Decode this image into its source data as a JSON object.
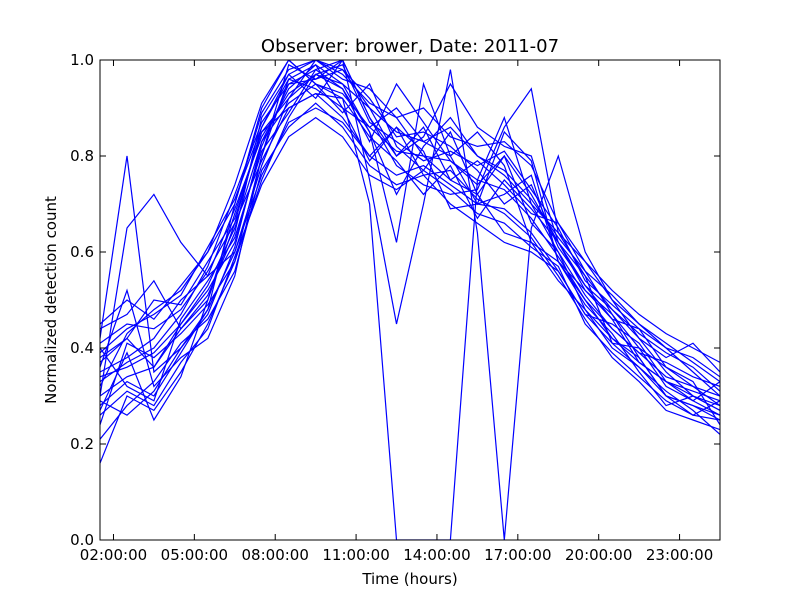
{
  "chart_data": {
    "type": "line",
    "title": "Observer: brower, Date: 2011-07",
    "xlabel": "Time (hours)",
    "ylabel": "Normalized detection count",
    "xlim": [
      1.5,
      24.5
    ],
    "ylim": [
      0.0,
      1.0
    ],
    "x_tick_values": [
      2,
      5,
      8,
      11,
      14,
      17,
      20,
      23
    ],
    "x_tick_labels": [
      "02:00:00",
      "05:00:00",
      "08:00:00",
      "11:00:00",
      "14:00:00",
      "17:00:00",
      "20:00:00",
      "23:00:00"
    ],
    "y_tick_values": [
      0.0,
      0.2,
      0.4,
      0.6,
      0.8,
      1.0
    ],
    "y_tick_labels": [
      "0.0",
      "0.2",
      "0.4",
      "0.6",
      "0.8",
      "1.0"
    ],
    "line_color": "#0000ff",
    "grid": false,
    "x": [
      1.5,
      2.5,
      3.5,
      4.5,
      5.5,
      6.5,
      7.5,
      8.5,
      9.5,
      10.5,
      11.5,
      12.5,
      13.5,
      14.5,
      15.5,
      16.5,
      17.5,
      18.5,
      19.5,
      20.5,
      21.5,
      22.5,
      23.5,
      24.5
    ],
    "series": [
      {
        "values": [
          0.38,
          0.42,
          0.36,
          0.45,
          0.52,
          0.62,
          0.82,
          0.95,
          0.98,
          1.0,
          0.88,
          0.8,
          0.86,
          0.75,
          0.72,
          0.8,
          0.72,
          0.62,
          0.52,
          0.47,
          0.4,
          0.36,
          0.32,
          0.28
        ]
      },
      {
        "values": [
          0.16,
          0.3,
          0.27,
          0.35,
          0.45,
          0.58,
          0.75,
          0.88,
          0.97,
          0.94,
          0.85,
          0.62,
          0.95,
          0.8,
          0.7,
          0.85,
          0.79,
          0.58,
          0.5,
          0.42,
          0.37,
          0.33,
          0.29,
          0.26
        ]
      },
      {
        "values": [
          0.42,
          0.8,
          0.35,
          0.4,
          0.48,
          0.7,
          0.9,
          1.0,
          0.95,
          0.92,
          0.7,
          0.0,
          0.0,
          0.0,
          0.75,
          0.88,
          0.7,
          0.6,
          0.48,
          0.42,
          0.38,
          0.3,
          0.28,
          0.25
        ]
      },
      {
        "values": [
          0.3,
          0.65,
          0.72,
          0.62,
          0.55,
          0.6,
          0.78,
          0.92,
          1.0,
          0.98,
          0.9,
          0.8,
          0.84,
          0.95,
          0.86,
          0.82,
          0.8,
          0.62,
          0.55,
          0.48,
          0.42,
          0.35,
          0.3,
          0.27
        ]
      },
      {
        "values": [
          0.36,
          0.52,
          0.32,
          0.38,
          0.42,
          0.55,
          0.8,
          0.99,
          0.96,
          1.0,
          0.75,
          0.45,
          0.7,
          0.98,
          0.64,
          0.0,
          0.65,
          0.8,
          0.6,
          0.5,
          0.45,
          0.4,
          0.35,
          0.3
        ]
      },
      {
        "values": [
          0.27,
          0.39,
          0.25,
          0.34,
          0.5,
          0.68,
          0.85,
          0.9,
          0.93,
          0.88,
          0.8,
          0.86,
          0.76,
          0.7,
          0.66,
          0.62,
          0.6,
          0.56,
          0.47,
          0.45,
          0.41,
          0.33,
          0.3,
          0.27
        ]
      },
      {
        "values": [
          0.41,
          0.45,
          0.44,
          0.48,
          0.56,
          0.66,
          0.86,
          0.97,
          1.0,
          0.97,
          0.91,
          0.88,
          0.8,
          0.75,
          0.79,
          0.74,
          0.68,
          0.66,
          0.56,
          0.47,
          0.38,
          0.3,
          0.26,
          0.29
        ]
      },
      {
        "values": [
          0.32,
          0.43,
          0.48,
          0.52,
          0.6,
          0.74,
          0.91,
          1.0,
          0.95,
          0.89,
          0.95,
          0.82,
          0.77,
          0.85,
          0.72,
          0.64,
          0.62,
          0.58,
          0.52,
          0.46,
          0.44,
          0.36,
          0.33,
          0.24
        ]
      },
      {
        "values": [
          0.29,
          0.26,
          0.31,
          0.4,
          0.47,
          0.61,
          0.83,
          0.94,
          0.99,
          0.9,
          0.86,
          0.9,
          0.83,
          0.8,
          0.85,
          0.78,
          0.62,
          0.54,
          0.48,
          0.4,
          0.36,
          0.31,
          0.27,
          0.22
        ]
      },
      {
        "values": [
          0.44,
          0.47,
          0.54,
          0.44,
          0.51,
          0.64,
          0.88,
          0.97,
          0.92,
          1.0,
          0.88,
          0.78,
          0.74,
          0.72,
          0.73,
          0.86,
          0.94,
          0.64,
          0.58,
          0.5,
          0.42,
          0.38,
          0.41,
          0.35
        ]
      },
      {
        "values": [
          0.35,
          0.38,
          0.42,
          0.5,
          0.55,
          0.69,
          0.84,
          0.93,
          0.97,
          0.95,
          0.85,
          0.72,
          0.82,
          0.88,
          0.8,
          0.76,
          0.7,
          0.64,
          0.55,
          0.41,
          0.4,
          0.32,
          0.29,
          0.33
        ]
      },
      {
        "values": [
          0.4,
          0.32,
          0.29,
          0.46,
          0.54,
          0.63,
          0.81,
          0.89,
          0.98,
          0.94,
          0.83,
          0.95,
          0.87,
          0.79,
          0.74,
          0.8,
          0.66,
          0.6,
          0.51,
          0.44,
          0.39,
          0.37,
          0.34,
          0.32
        ]
      },
      {
        "values": [
          0.24,
          0.41,
          0.38,
          0.43,
          0.49,
          0.58,
          0.8,
          0.96,
          0.94,
          0.9,
          0.79,
          0.86,
          0.81,
          0.69,
          0.7,
          0.72,
          0.76,
          0.58,
          0.49,
          0.43,
          0.35,
          0.28,
          0.3,
          0.28
        ]
      },
      {
        "values": [
          0.33,
          0.37,
          0.4,
          0.47,
          0.57,
          0.72,
          0.87,
          0.95,
          0.96,
          0.98,
          0.92,
          0.84,
          0.85,
          0.82,
          0.77,
          0.7,
          0.74,
          0.61,
          0.53,
          0.48,
          0.43,
          0.39,
          0.36,
          0.31
        ]
      },
      {
        "values": [
          0.21,
          0.28,
          0.33,
          0.41,
          0.46,
          0.56,
          0.77,
          0.86,
          0.91,
          0.86,
          0.78,
          0.74,
          0.76,
          0.77,
          0.71,
          0.68,
          0.63,
          0.55,
          0.46,
          0.38,
          0.33,
          0.27,
          0.25,
          0.23
        ]
      },
      {
        "values": [
          0.45,
          0.5,
          0.46,
          0.53,
          0.6,
          0.7,
          0.89,
          0.98,
          1.0,
          0.96,
          0.94,
          0.88,
          0.9,
          0.84,
          0.82,
          0.83,
          0.78,
          0.66,
          0.58,
          0.52,
          0.47,
          0.43,
          0.4,
          0.37
        ]
      },
      {
        "values": [
          0.3,
          0.34,
          0.36,
          0.44,
          0.5,
          0.66,
          0.79,
          0.9,
          0.93,
          0.92,
          0.84,
          0.79,
          0.72,
          0.78,
          0.67,
          0.75,
          0.69,
          0.62,
          0.53,
          0.46,
          0.37,
          0.33,
          0.31,
          0.29
        ]
      },
      {
        "values": [
          0.37,
          0.42,
          0.5,
          0.49,
          0.58,
          0.67,
          0.85,
          0.92,
          0.97,
          0.99,
          0.87,
          0.83,
          0.79,
          0.81,
          0.78,
          0.81,
          0.73,
          0.65,
          0.54,
          0.49,
          0.44,
          0.4,
          0.38,
          0.34
        ]
      },
      {
        "values": [
          0.26,
          0.31,
          0.28,
          0.37,
          0.44,
          0.59,
          0.74,
          0.84,
          0.88,
          0.84,
          0.76,
          0.73,
          0.77,
          0.73,
          0.68,
          0.66,
          0.61,
          0.57,
          0.45,
          0.39,
          0.34,
          0.29,
          0.26,
          0.25
        ]
      },
      {
        "values": [
          0.39,
          0.44,
          0.47,
          0.51,
          0.61,
          0.71,
          0.86,
          0.96,
          0.99,
          0.95,
          0.9,
          0.85,
          0.83,
          0.86,
          0.8,
          0.77,
          0.71,
          0.63,
          0.56,
          0.51,
          0.45,
          0.41,
          0.37,
          0.33
        ]
      },
      {
        "values": [
          0.34,
          0.36,
          0.39,
          0.45,
          0.53,
          0.65,
          0.83,
          0.91,
          0.95,
          0.93,
          0.86,
          0.81,
          0.8,
          0.79,
          0.75,
          0.73,
          0.67,
          0.59,
          0.5,
          0.44,
          0.39,
          0.34,
          0.32,
          0.3
        ]
      },
      {
        "values": [
          0.28,
          0.33,
          0.3,
          0.39,
          0.48,
          0.6,
          0.76,
          0.87,
          0.9,
          0.87,
          0.8,
          0.76,
          0.78,
          0.74,
          0.7,
          0.69,
          0.64,
          0.56,
          0.47,
          0.41,
          0.36,
          0.3,
          0.28,
          0.26
        ]
      }
    ]
  }
}
